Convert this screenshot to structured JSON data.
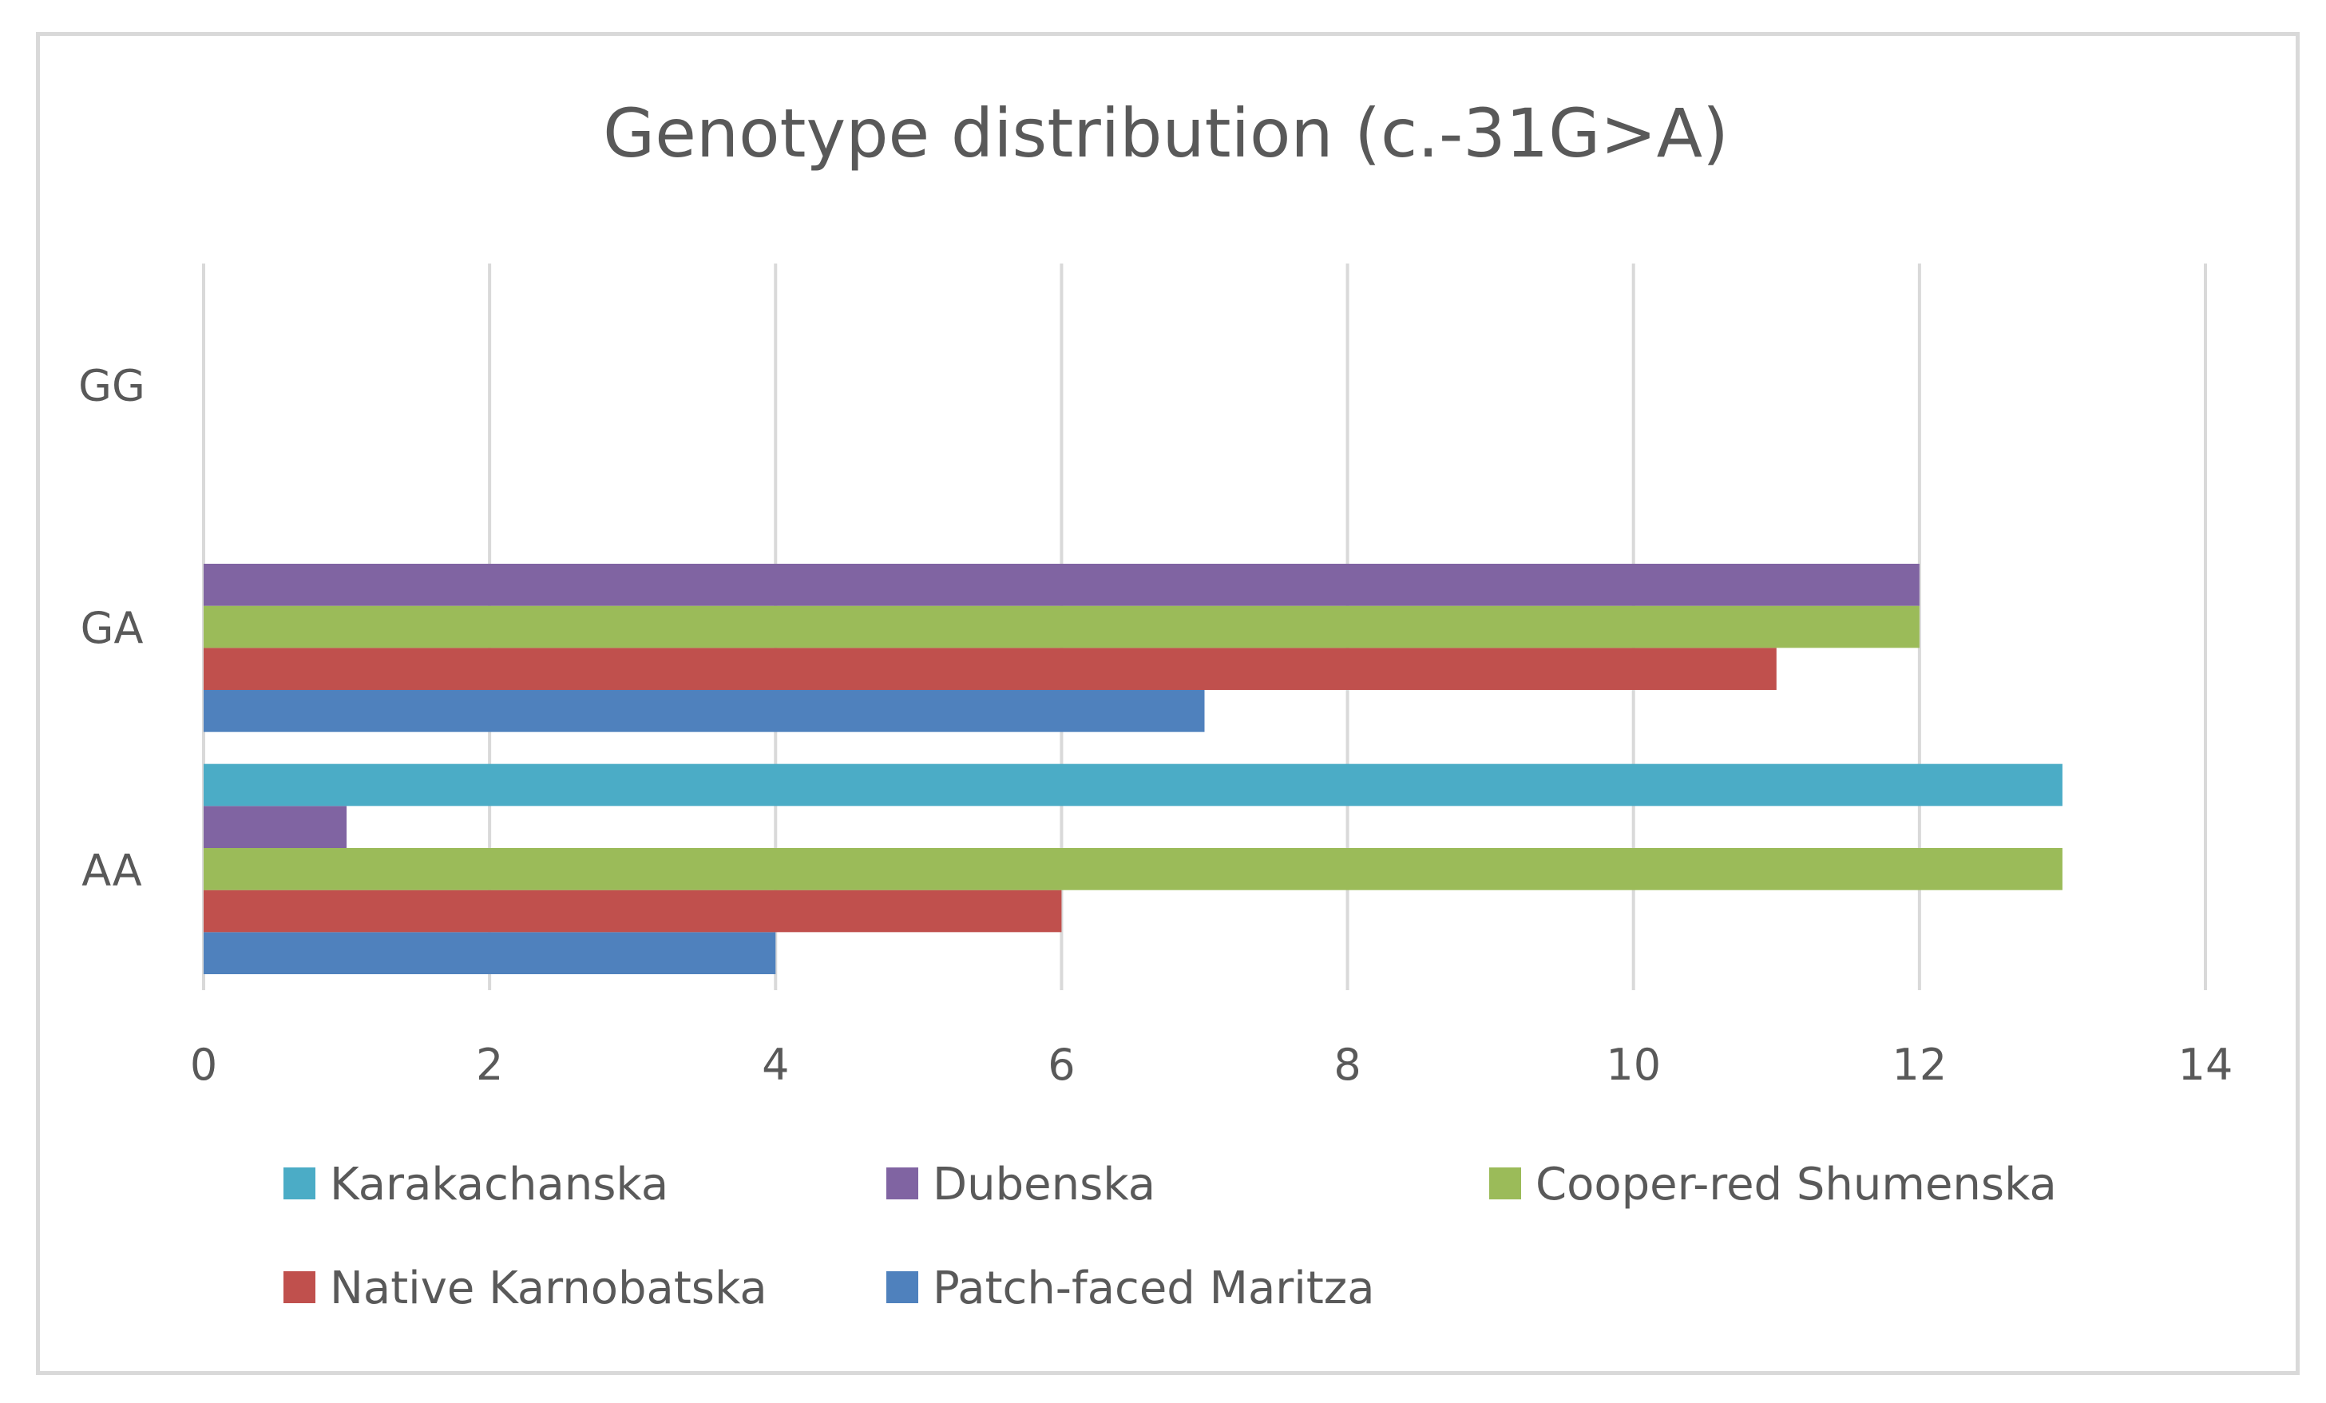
{
  "chart_data": {
    "type": "bar",
    "orientation": "horizontal",
    "title": "Genotype distribution (c.-31G>A)",
    "xlabel": "",
    "ylabel": "",
    "categories": [
      "AA",
      "GA",
      "GG"
    ],
    "xlim": [
      0,
      14
    ],
    "xticks": [
      0,
      2,
      4,
      6,
      8,
      10,
      12,
      14
    ],
    "grid": true,
    "legend_position": "bottom",
    "series": [
      {
        "name": "Patch-faced Maritza",
        "color": "#4f81bd",
        "values": [
          4,
          7,
          0
        ]
      },
      {
        "name": "Native Karnobatska",
        "color": "#c0504d",
        "values": [
          6,
          11,
          0
        ]
      },
      {
        "name": "Cooper-red Shumenska",
        "color": "#9bbb59",
        "values": [
          13,
          12,
          0
        ]
      },
      {
        "name": "Dubenska",
        "color": "#8064a2",
        "values": [
          1,
          12,
          0
        ]
      },
      {
        "name": "Karakachanska",
        "color": "#4bacc6",
        "values": [
          13,
          0,
          0
        ]
      }
    ],
    "legend_order": [
      "Karakachanska",
      "Dubenska",
      "Cooper-red Shumenska",
      "Native Karnobatska",
      "Patch-faced Maritza"
    ]
  }
}
